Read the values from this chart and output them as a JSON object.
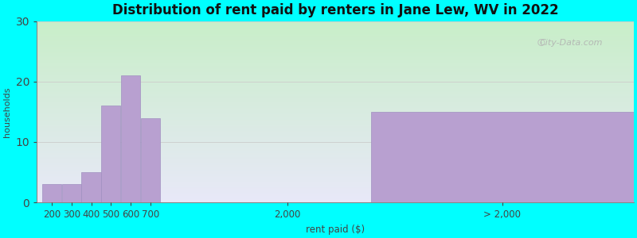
{
  "title": "Distribution of rent paid by renters in Jane Lew, WV in 2022",
  "xlabel": "rent paid ($)",
  "ylabel": "households",
  "background_color": "#00ffff",
  "gradient_top": "#c8eec8",
  "gradient_bottom": "#e8e8f8",
  "bar_color": "#b8a0d0",
  "bar_edgecolor": "#a090c0",
  "ylim": [
    0,
    30
  ],
  "yticks": [
    0,
    10,
    20,
    30
  ],
  "bars": [
    {
      "label": "200",
      "value": 3
    },
    {
      "label": "300",
      "value": 3
    },
    {
      "label": "400",
      "value": 5
    },
    {
      "label": "500",
      "value": 16
    },
    {
      "label": "600",
      "value": 21
    },
    {
      "label": "700",
      "value": 14
    }
  ],
  "special_bar_value": 15,
  "special_bar_label": "> 2,000",
  "mid_label": "2,000",
  "watermark": "City-Data.com",
  "title_fontsize": 12,
  "axis_fontsize": 8.5,
  "ylabel_fontsize": 8
}
